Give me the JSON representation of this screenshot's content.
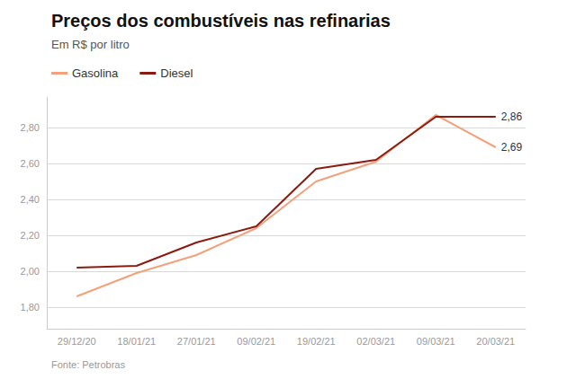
{
  "chart_data": {
    "type": "line",
    "title": "Preços dos combustíveis nas refinarias",
    "subtitle": "Em R$ por litro",
    "source": "Fonte: Petrobras",
    "categories": [
      "29/12/20",
      "18/01/21",
      "27/01/21",
      "09/02/21",
      "19/02/21",
      "02/03/21",
      "09/03/21",
      "20/03/21"
    ],
    "series": [
      {
        "name": "Gasolina",
        "color": "#f4a07a",
        "values": [
          1.86,
          1.99,
          2.09,
          2.24,
          2.5,
          2.61,
          2.87,
          2.69
        ]
      },
      {
        "name": "Diesel",
        "color": "#8b1a10",
        "values": [
          2.02,
          2.03,
          2.16,
          2.25,
          2.57,
          2.62,
          2.86,
          2.86
        ]
      }
    ],
    "annotations": [
      {
        "text": "2,69",
        "series": "Gasolina",
        "x": "20/03/21",
        "y": 2.69
      },
      {
        "text": "2,86",
        "series": "Diesel",
        "x": "20/03/21",
        "y": 2.86
      }
    ],
    "ylim": [
      1.68,
      2.97
    ],
    "yticks": [
      {
        "value": 1.8,
        "label": "1,80"
      },
      {
        "value": 2.0,
        "label": "2,00"
      },
      {
        "value": 2.2,
        "label": "2,20"
      },
      {
        "value": 2.4,
        "label": "2,40"
      },
      {
        "value": 2.6,
        "label": "2,60"
      },
      {
        "value": 2.8,
        "label": "2,80"
      }
    ],
    "grid": true,
    "legend": "top-left"
  }
}
